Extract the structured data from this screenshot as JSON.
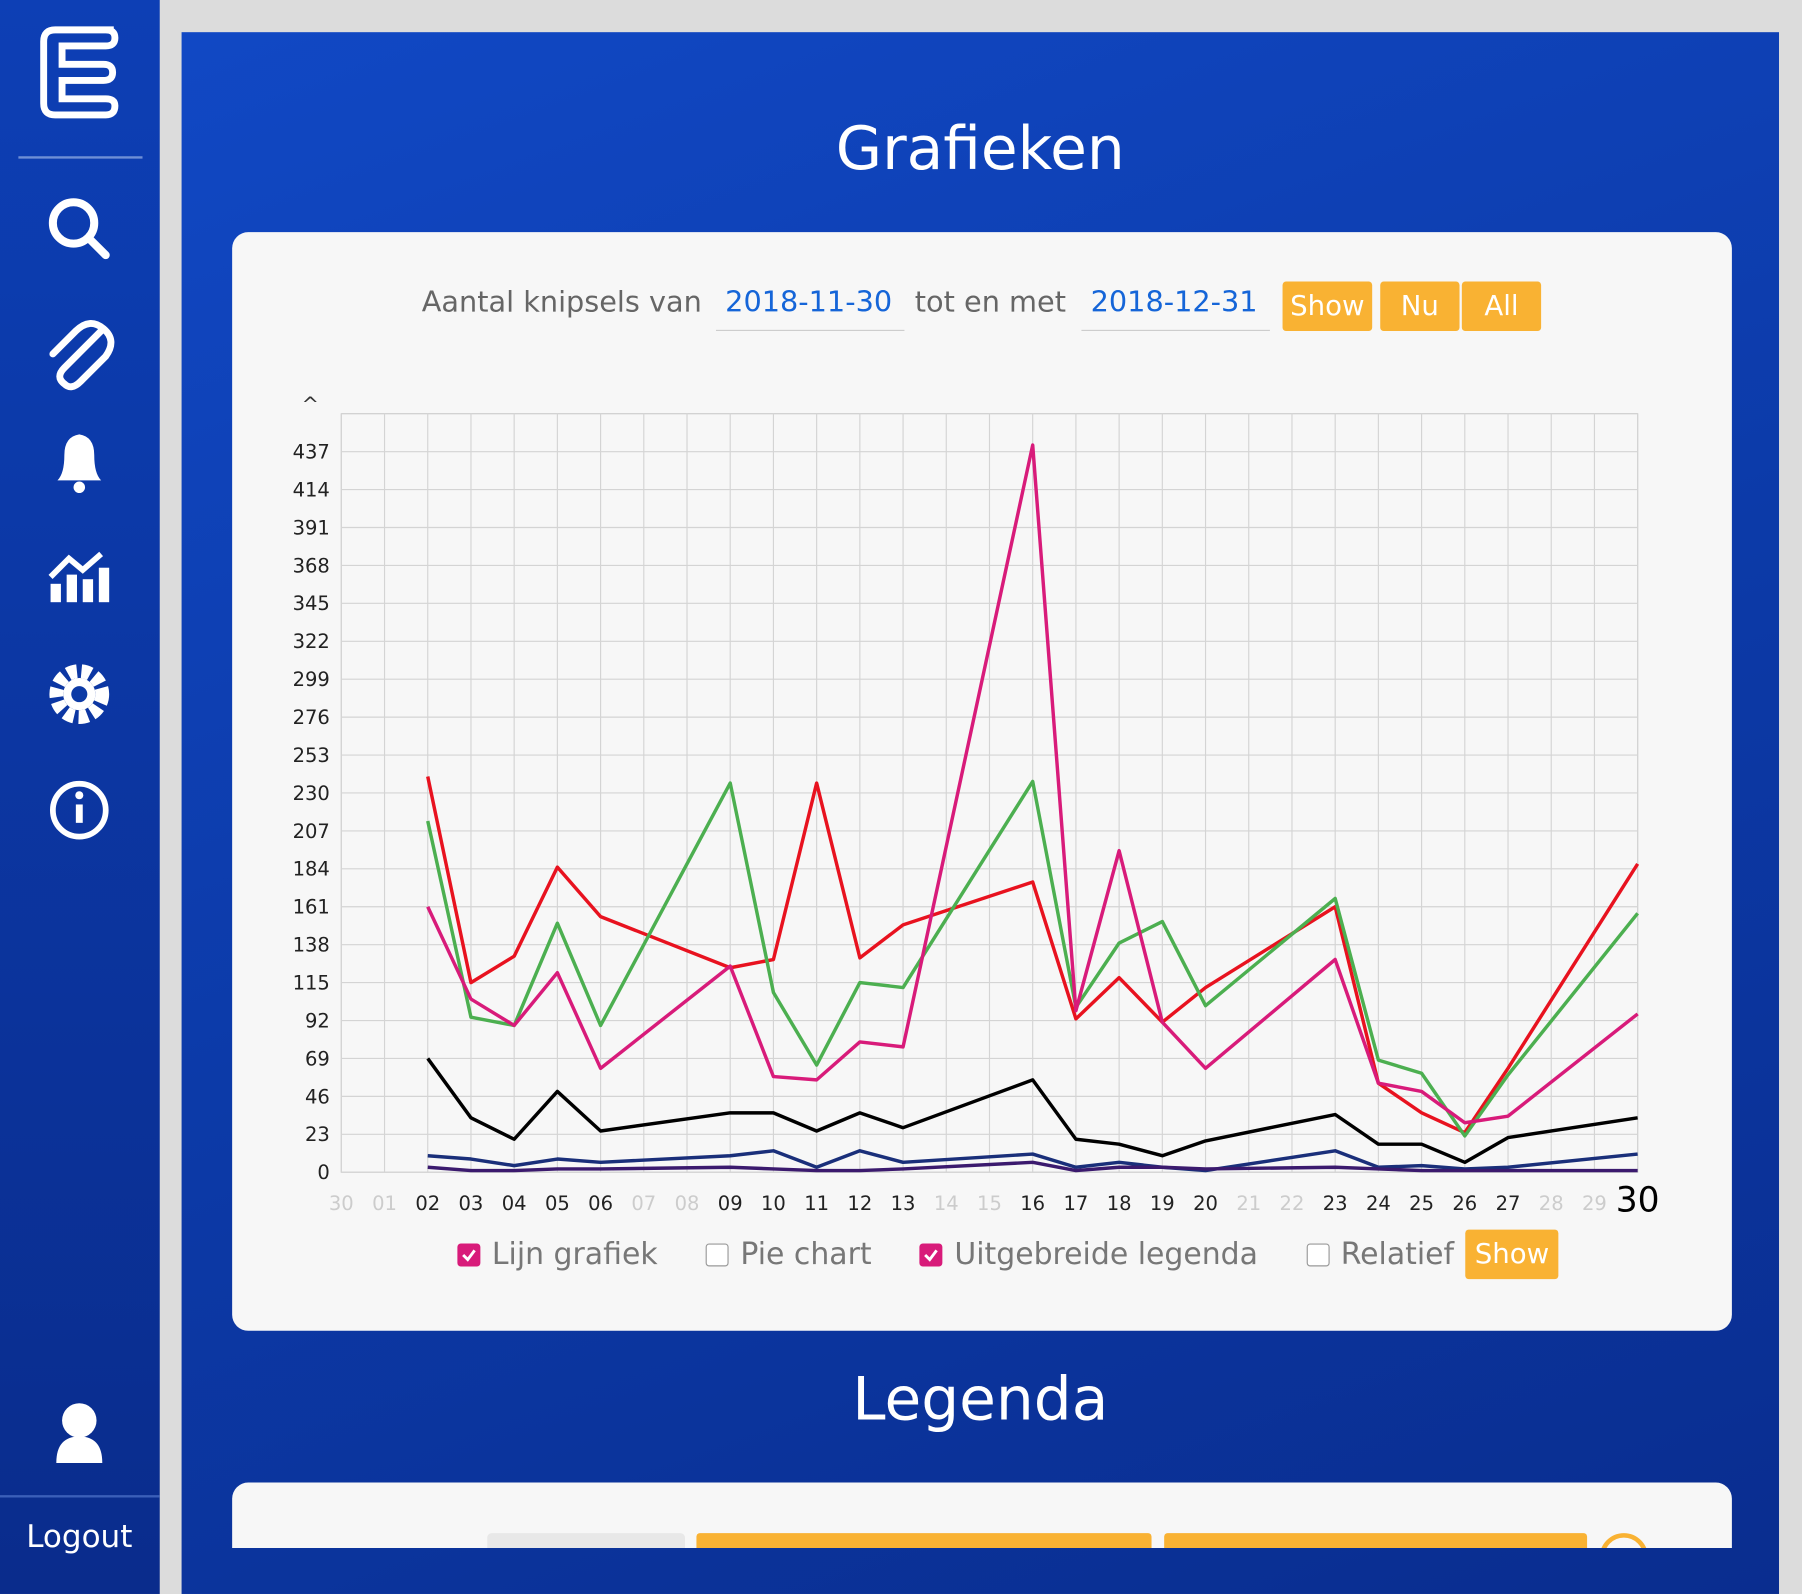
{
  "sidebar": {
    "logout": "Logout"
  },
  "header": {
    "title": "Grafieken"
  },
  "filter": {
    "label_from": "Aantal knipsels van",
    "date_from": "2018-11-30",
    "label_to": "tot en met",
    "date_to": "2018-12-31",
    "buttons": [
      "Show",
      "Nu",
      "All"
    ]
  },
  "chart_data": {
    "type": "line",
    "y_axis_label": "^",
    "categories": [
      "30",
      "01",
      "02",
      "03",
      "04",
      "05",
      "06",
      "07",
      "08",
      "09",
      "10",
      "11",
      "12",
      "13",
      "14",
      "15",
      "16",
      "17",
      "18",
      "19",
      "20",
      "21",
      "22",
      "23",
      "24",
      "25",
      "26",
      "27",
      "28",
      "29",
      "30"
    ],
    "ylim": [
      0,
      460
    ],
    "yticks": [
      0,
      23,
      46,
      69,
      92,
      115,
      138,
      161,
      184,
      207,
      230,
      253,
      276,
      299,
      322,
      345,
      368,
      391,
      414,
      437
    ],
    "grid": true,
    "series": [
      {
        "color": "#e8121f",
        "values": [
          null,
          null,
          240,
          115,
          131,
          185,
          155,
          null,
          null,
          124,
          129,
          236,
          130,
          150,
          null,
          null,
          176,
          93,
          118,
          91,
          112,
          null,
          null,
          161,
          54,
          36,
          24,
          63,
          null,
          null,
          187
        ]
      },
      {
        "color": "#4caf50",
        "values": [
          null,
          null,
          213,
          94,
          89,
          151,
          89,
          null,
          null,
          236,
          109,
          65,
          115,
          112,
          null,
          null,
          237,
          100,
          139,
          152,
          101,
          null,
          null,
          166,
          68,
          60,
          22,
          59,
          null,
          null,
          157
        ]
      },
      {
        "color": "#d81b7a",
        "values": [
          null,
          null,
          161,
          105,
          89,
          121,
          63,
          null,
          null,
          125,
          58,
          56,
          79,
          76,
          null,
          null,
          441,
          98,
          195,
          91,
          63,
          null,
          null,
          129,
          54,
          49,
          30,
          34,
          null,
          null,
          96
        ]
      },
      {
        "color": "#000000",
        "values": [
          null,
          null,
          69,
          33,
          20,
          49,
          25,
          null,
          null,
          36,
          36,
          25,
          36,
          27,
          null,
          null,
          56,
          20,
          17,
          10,
          19,
          null,
          null,
          35,
          17,
          17,
          6,
          21,
          null,
          null,
          33
        ]
      },
      {
        "color": "#1a2f7a",
        "values": [
          null,
          null,
          10,
          8,
          4,
          8,
          6,
          null,
          null,
          10,
          13,
          3,
          13,
          6,
          null,
          null,
          11,
          3,
          6,
          3,
          1,
          null,
          null,
          13,
          3,
          4,
          2,
          3,
          null,
          null,
          11
        ]
      },
      {
        "color": "#3b1a6e",
        "values": [
          null,
          null,
          3,
          1,
          1,
          2,
          2,
          null,
          null,
          3,
          2,
          1,
          1,
          2,
          null,
          null,
          6,
          1,
          3,
          3,
          2,
          null,
          null,
          3,
          2,
          1,
          1,
          1,
          null,
          null,
          1
        ]
      }
    ]
  },
  "options": {
    "checkboxes": [
      {
        "label": "Lijn grafiek",
        "checked": true
      },
      {
        "label": "Pie chart",
        "checked": false
      },
      {
        "label": "Uitgebreide legenda",
        "checked": true
      },
      {
        "label": "Relatief",
        "checked": false
      }
    ],
    "button": "Show"
  },
  "legend_section": {
    "title": "Legenda"
  }
}
